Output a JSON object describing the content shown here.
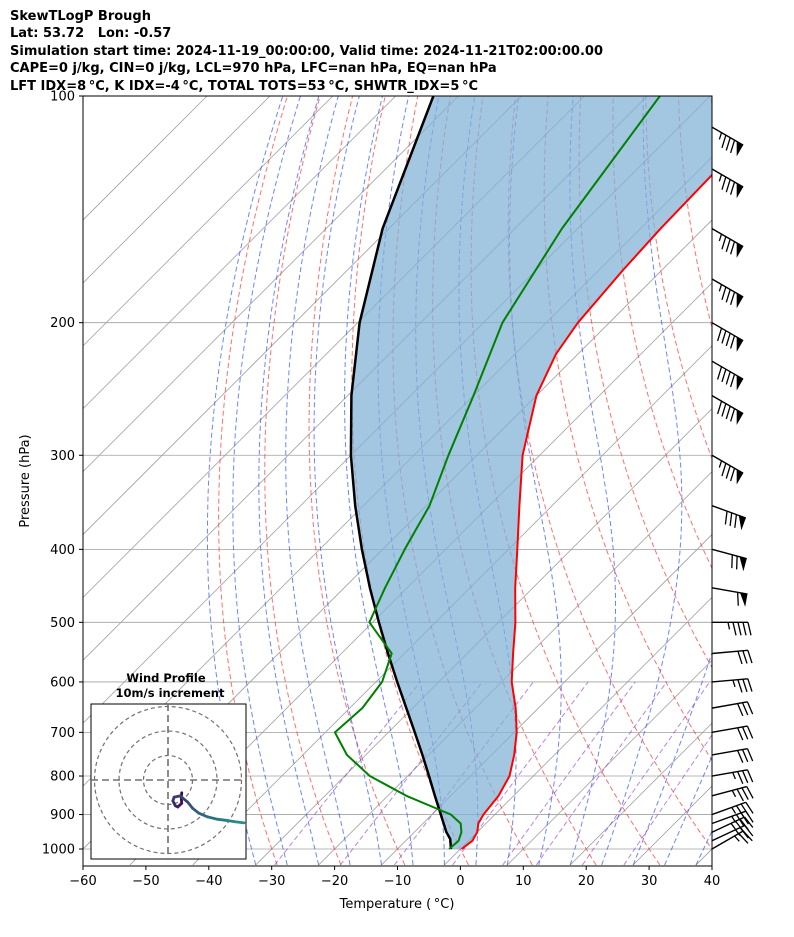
{
  "header": {
    "line1": "SkewTLogP Brough",
    "line2": "Lat: 53.72   Lon: -0.57",
    "line3": "Simulation start time: 2024-11-19_00:00:00, Valid time: 2024-11-21T02:00:00.00",
    "line4": "CAPE=0 j/kg, CIN=0 j/kg, LCL=970 hPa, LFC=nan hPa, EQ=nan hPa",
    "line5": "LFT IDX=8 °C, K IDX=-4 °C, TOTAL TOTS=53 °C, SHWTR_IDX=5 °C"
  },
  "colors": {
    "temperature": "#ff0000",
    "dewpoint": "#008000",
    "parcel": "#000000",
    "cin_fill": "#7fb1d6",
    "dry_adiabat": "#ff4040",
    "moist_adiabat": "#3050ff",
    "mixing_ratio": "#9030d0",
    "isotherm": "#a0a0a0",
    "isobar": "#a0a0a0"
  },
  "chart_data": {
    "type": "skewt",
    "xlabel": "Temperature ( °C)",
    "ylabel": "Pressure (hPa)",
    "xlim": [
      -60,
      40
    ],
    "ylim": [
      1050,
      100
    ],
    "yscale": "log",
    "x_ticks": [
      -60,
      -50,
      -40,
      -30,
      -20,
      -10,
      0,
      10,
      20,
      30,
      40
    ],
    "x_tick_labels": [
      "−60",
      "−50",
      "−40",
      "−30",
      "−20",
      "−10",
      "0",
      "10",
      "20",
      "30",
      "40"
    ],
    "y_ticks": [
      1000,
      900,
      800,
      700,
      600,
      500,
      400,
      300,
      200,
      100
    ],
    "y_tick_labels": [
      "1000",
      "900",
      "800",
      "700",
      "600",
      "500",
      "400",
      "300",
      "200",
      "100"
    ],
    "temperature": {
      "p": [
        1000,
        975,
        950,
        925,
        900,
        850,
        800,
        750,
        700,
        650,
        600,
        550,
        500,
        450,
        400,
        350,
        300,
        250,
        220,
        200,
        170,
        150,
        125,
        100
      ],
      "t": [
        0.2,
        0.6,
        0.0,
        -1.2,
        -1.8,
        -2.4,
        -3.8,
        -6.4,
        -9.6,
        -13.6,
        -18.4,
        -22.7,
        -27.3,
        -32.8,
        -38.6,
        -45.2,
        -52.7,
        -60.0,
        -63.5,
        -65.0,
        -66.2,
        -66.8,
        -67.2,
        -68.0
      ]
    },
    "dewpoint": {
      "p": [
        1000,
        975,
        950,
        925,
        900,
        850,
        800,
        750,
        700,
        650,
        600,
        550,
        500,
        450,
        400,
        350,
        300,
        250,
        200,
        150,
        100
      ],
      "t": [
        -1.8,
        -1.6,
        -2.5,
        -4.0,
        -7.0,
        -17.0,
        -26.0,
        -33.0,
        -38.5,
        -38.0,
        -39.0,
        -42.0,
        -50.5,
        -53.5,
        -56.5,
        -59.5,
        -64.5,
        -70.0,
        -77.0,
        -82.5,
        -88.0
      ]
    },
    "parcel": {
      "p": [
        1000,
        970,
        950,
        900,
        850,
        800,
        750,
        700,
        650,
        600,
        550,
        500,
        450,
        400,
        350,
        300,
        250,
        200,
        150,
        100
      ],
      "t": [
        -1.5,
        -3.2,
        -4.9,
        -8.6,
        -12.5,
        -16.6,
        -21.0,
        -25.8,
        -31.0,
        -36.6,
        -42.6,
        -49.0,
        -55.9,
        -63.3,
        -71.3,
        -80.0,
        -89.4,
        -99.7,
        -111.0,
        -124.0
      ]
    },
    "wind_barbs": {
      "p": [
        1000,
        975,
        950,
        925,
        900,
        850,
        800,
        750,
        700,
        650,
        600,
        550,
        500,
        450,
        400,
        350,
        300,
        250,
        225,
        200,
        175,
        150,
        125,
        110
      ],
      "speed_kt": [
        25,
        25,
        35,
        35,
        35,
        35,
        35,
        30,
        30,
        30,
        35,
        30,
        45,
        60,
        70,
        80,
        85,
        90,
        90,
        90,
        85,
        85,
        85,
        85
      ],
      "dir_deg": [
        240,
        245,
        245,
        250,
        250,
        255,
        260,
        260,
        260,
        260,
        265,
        265,
        270,
        280,
        285,
        290,
        300,
        300,
        300,
        300,
        300,
        300,
        300,
        300
      ]
    },
    "inset": {
      "title": "Wind Profile",
      "subtitle": "10m/s increment",
      "rings_ms": [
        10,
        20,
        30
      ],
      "hodograph": {
        "u": [
          5.6,
          5.4,
          5.6,
          4.0,
          3.0,
          2.0,
          2.5,
          5.0,
          8.0,
          10.0,
          12.5,
          16.0,
          20.0,
          24.0,
          27.0,
          31.0
        ],
        "v": [
          -5.2,
          -7.0,
          -9.5,
          -11.0,
          -10.5,
          -8.5,
          -7.0,
          -6.5,
          -9.0,
          -11.5,
          -13.5,
          -15.0,
          -16.0,
          -16.5,
          -17.0,
          -17.5
        ]
      }
    }
  }
}
